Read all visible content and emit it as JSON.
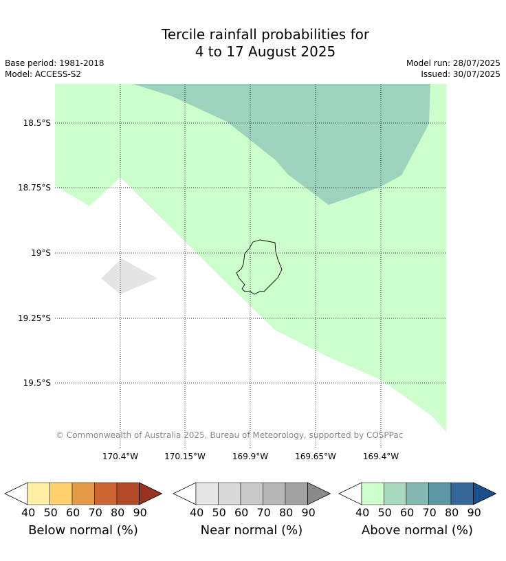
{
  "title": {
    "line1": "Tercile rainfall probabilities for",
    "line2": "4 to 17 August 2025"
  },
  "meta": {
    "base_period": "Base period: 1981-2018",
    "model": "Model: ACCESS-S2",
    "model_run": "Model run: 28/07/2025",
    "issued": "Issued: 30/07/2025"
  },
  "map": {
    "lat_labels": [
      "18.5°S",
      "18.75°S",
      "19°S",
      "19.25°S",
      "19.5°S"
    ],
    "lon_labels": [
      "170.4°W",
      "170.15°W",
      "169.9°W",
      "169.65°W",
      "169.4°W"
    ],
    "copyright": "© Commonwealth of Australia 2025, Bureau of Meteorology, supported by COSPPac",
    "colors": {
      "above_50": "#ccffcc",
      "above_60": "#9dd3bd",
      "near_50": "#e5e5e5",
      "land_outline": "#000000"
    }
  },
  "legends": [
    {
      "caption": "Below normal (%)",
      "ticks": [
        "40",
        "50",
        "60",
        "70",
        "80",
        "90"
      ],
      "colors": [
        "#fff0a6",
        "#ffd06b",
        "#e59a48",
        "#cd6632",
        "#b24a27",
        "#9a3220"
      ]
    },
    {
      "caption": "Near normal (%)",
      "ticks": [
        "40",
        "50",
        "60",
        "70",
        "80",
        "90"
      ],
      "colors": [
        "#e6e6e6",
        "#d9d9d9",
        "#c9c9c9",
        "#b6b6b6",
        "#a2a2a2",
        "#8a8a8a"
      ]
    },
    {
      "caption": "Above normal (%)",
      "ticks": [
        "40",
        "50",
        "60",
        "70",
        "80",
        "90"
      ],
      "colors": [
        "#ccffcc",
        "#a8d9bd",
        "#84b8b0",
        "#5e96a3",
        "#356899",
        "#1a4f8c"
      ]
    }
  ]
}
